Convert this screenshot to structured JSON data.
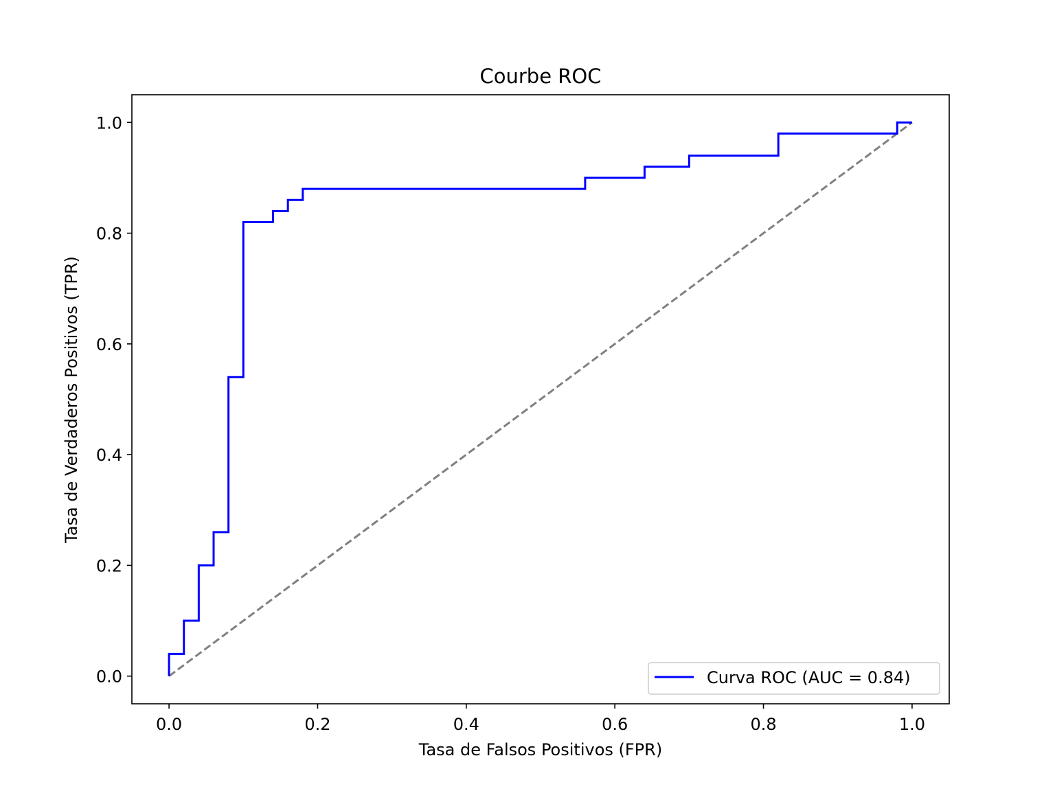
{
  "chart_data": {
    "type": "line",
    "title": "Courbe ROC",
    "xlabel": "Tasa de Falsos Positivos (FPR)",
    "ylabel": "Tasa de Verdaderos Positivos (TPR)",
    "xlim": [
      -0.05,
      1.05
    ],
    "ylim": [
      -0.05,
      1.05
    ],
    "xticks": [
      "0.0",
      "0.2",
      "0.4",
      "0.6",
      "0.8",
      "1.0"
    ],
    "yticks": [
      "0.0",
      "0.2",
      "0.4",
      "0.6",
      "0.8",
      "1.0"
    ],
    "grid": false,
    "legend_position": "lower-right",
    "series": [
      {
        "name": "Curva ROC (AUC = 0.84)",
        "color": "#0000ff",
        "style": "solid",
        "x": [
          0.0,
          0.0,
          0.02,
          0.02,
          0.04,
          0.04,
          0.06,
          0.06,
          0.08,
          0.08,
          0.1,
          0.1,
          0.14,
          0.14,
          0.16,
          0.16,
          0.18,
          0.18,
          0.56,
          0.56,
          0.64,
          0.64,
          0.7,
          0.7,
          0.82,
          0.82,
          0.98,
          0.98,
          1.0
        ],
        "y": [
          0.0,
          0.04,
          0.04,
          0.1,
          0.1,
          0.2,
          0.2,
          0.26,
          0.26,
          0.54,
          0.54,
          0.82,
          0.82,
          0.84,
          0.84,
          0.86,
          0.86,
          0.88,
          0.88,
          0.9,
          0.9,
          0.92,
          0.92,
          0.94,
          0.94,
          0.98,
          0.98,
          1.0,
          1.0
        ]
      },
      {
        "color": "#808080",
        "style": "dashed",
        "x": [
          0.0,
          1.0
        ],
        "y": [
          0.0,
          1.0
        ]
      }
    ]
  }
}
